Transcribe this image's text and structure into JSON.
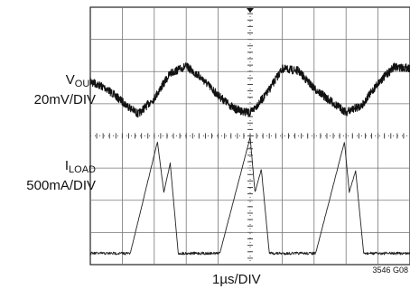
{
  "chart_data": {
    "type": "line",
    "title": "",
    "grid": true,
    "xlabel": "1µs/DIV",
    "xlim": [
      0,
      10
    ],
    "ylim": [
      -4,
      4
    ],
    "figure_id": "3546 G08",
    "series": [
      {
        "name": "VOUT",
        "label_main": "V",
        "label_sub": "OUT",
        "scale": "20mV/DIV",
        "offset_div": 1.45,
        "x": [
          0,
          0.5,
          1.0,
          1.5,
          2.0,
          2.5,
          3.0,
          3.5,
          4.0,
          4.5,
          5.0,
          5.5,
          6.0,
          6.5,
          7.0,
          7.5,
          8.0,
          8.5,
          9.0,
          9.5,
          10.0
        ],
        "y": [
          0.45,
          0.05,
          -0.7,
          -1.4,
          -0.5,
          0.9,
          1.3,
          0.6,
          -0.35,
          -1.1,
          -1.35,
          -0.3,
          1.15,
          1.05,
          0.05,
          -0.65,
          -1.3,
          -0.9,
          0.35,
          1.25,
          1.2
        ]
      },
      {
        "name": "ILOAD",
        "label_main": "I",
        "label_sub": "LOAD",
        "scale": "500mA/DIV",
        "offset_div": -1.75,
        "x": [
          0,
          1.25,
          2.1,
          2.3,
          2.5,
          2.75,
          4.05,
          5.0,
          5.15,
          5.35,
          5.6,
          7.05,
          7.95,
          8.1,
          8.3,
          8.55,
          10.0
        ],
        "y": [
          -2.0,
          -2.0,
          1.65,
          0.0,
          0.95,
          -2.0,
          -2.0,
          1.8,
          0.0,
          0.75,
          -2.0,
          -2.0,
          1.65,
          0.0,
          0.7,
          -2.0,
          -2.0
        ]
      }
    ]
  }
}
